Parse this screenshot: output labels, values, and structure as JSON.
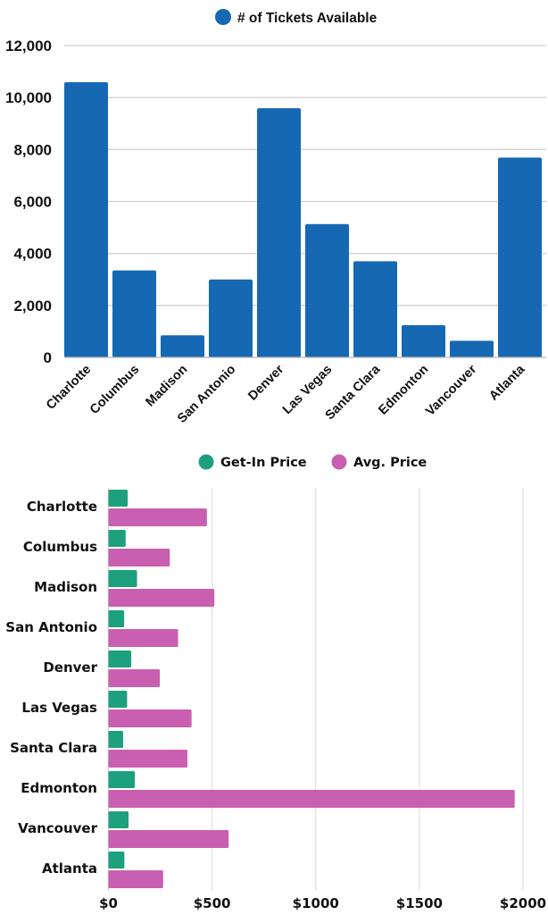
{
  "chart_data": [
    {
      "type": "bar",
      "orientation": "vertical",
      "title": "",
      "legend": [
        "# of Tickets Available"
      ],
      "legend_position": "top",
      "xlabel": "",
      "ylabel": "",
      "categories": [
        "Charlotte",
        "Columbus",
        "Madison",
        "San Antonio",
        "Denver",
        "Las Vegas",
        "Santa Clara",
        "Edmonton",
        "Vancouver",
        "Atlanta"
      ],
      "series": [
        {
          "name": "# of Tickets Available",
          "color": "#1668b3",
          "values": [
            10590,
            3350,
            850,
            3000,
            9590,
            5130,
            3700,
            1240,
            640,
            7690
          ]
        }
      ],
      "ylim": [
        0,
        12000
      ],
      "yticks": [
        "0",
        "2,000",
        "4,000",
        "6,000",
        "8,000",
        "10,000",
        "12,000"
      ],
      "ytick_values": [
        0,
        2000,
        4000,
        6000,
        8000,
        10000,
        12000
      ],
      "grid": true
    },
    {
      "type": "bar",
      "orientation": "horizontal",
      "title": "",
      "legend": [
        "Get-In Price",
        "Avg. Price"
      ],
      "legend_position": "top",
      "xlabel": "",
      "ylabel": "",
      "categories": [
        "Charlotte",
        "Columbus",
        "Madison",
        "San Antonio",
        "Denver",
        "Las Vegas",
        "Santa Clara",
        "Edmonton",
        "Vancouver",
        "Atlanta"
      ],
      "series": [
        {
          "name": "Get-In Price",
          "color": "#1da07e",
          "values": [
            93,
            83,
            138,
            76,
            110,
            90,
            71,
            127,
            97,
            77
          ]
        },
        {
          "name": "Avg. Price",
          "color": "#c95fb0",
          "values": [
            475,
            296,
            511,
            336,
            248,
            401,
            381,
            1960,
            580,
            264
          ]
        }
      ],
      "xlim": [
        0,
        2000
      ],
      "xticks": [
        "$0",
        "$500",
        "$1000",
        "$1500",
        "$2000"
      ],
      "xtick_values": [
        0,
        500,
        1000,
        1500,
        2000
      ],
      "grid": true
    }
  ],
  "chart1": {
    "legend_label": "# of Tickets Available",
    "bar_color": "#1668b3",
    "grid_color": "#d0d0d0"
  },
  "chart2": {
    "legend_get_in": "Get-In Price",
    "legend_avg": "Avg. Price",
    "get_in_color": "#1da07e",
    "avg_color": "#c95fb0",
    "grid_color": "#e2e2e2"
  }
}
